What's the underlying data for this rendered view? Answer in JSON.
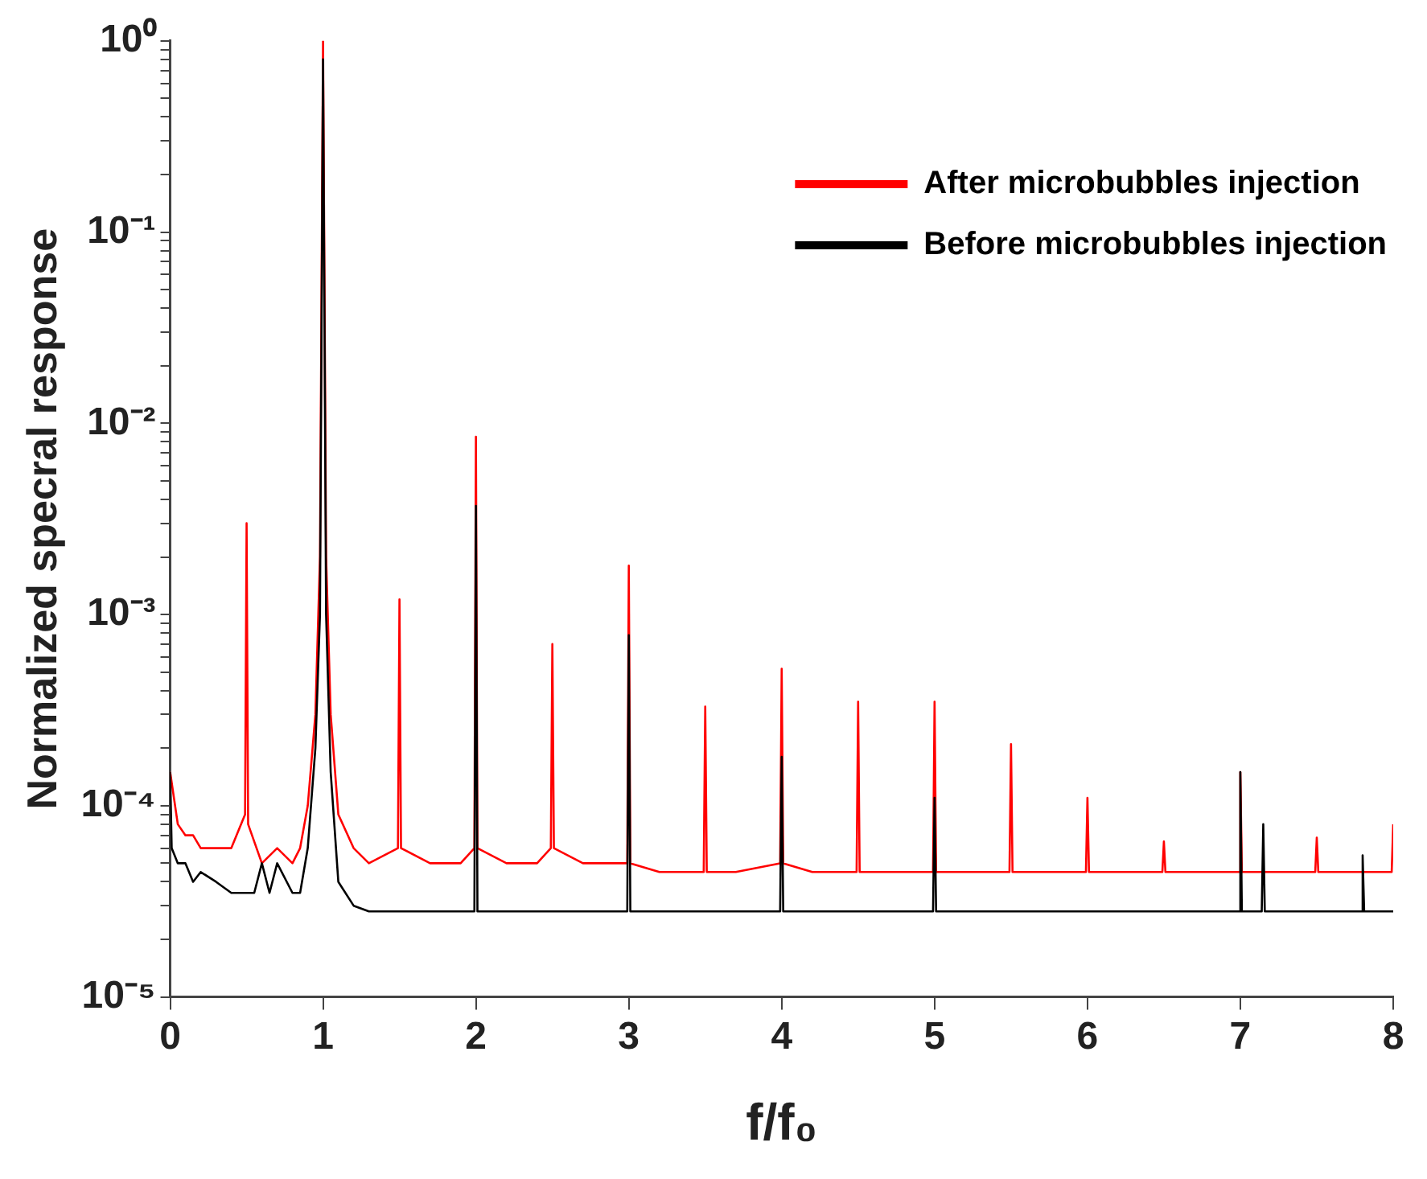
{
  "chart_data": {
    "type": "line",
    "xlabel": "f/f₀",
    "ylabel": "Normalized specral response",
    "log": "y",
    "xlim": [
      0,
      8
    ],
    "xticks": [
      0,
      1,
      2,
      3,
      4,
      5,
      6,
      7,
      8
    ],
    "ylim": [
      1e-05,
      1
    ],
    "yticks": [
      {
        "value": 1e-05,
        "label": "10⁻⁵"
      },
      {
        "value": 2e-05,
        "label": null
      },
      {
        "value": 3e-05,
        "label": null
      },
      {
        "value": 4e-05,
        "label": null
      },
      {
        "value": 5e-05,
        "label": null
      },
      {
        "value": 6e-05,
        "label": null
      },
      {
        "value": 7e-05,
        "label": null
      },
      {
        "value": 8e-05,
        "label": null
      },
      {
        "value": 9e-05,
        "label": null
      },
      {
        "value": 0.0001,
        "label": "10⁻⁴"
      },
      {
        "value": 0.0002,
        "label": null
      },
      {
        "value": 0.0003,
        "label": null
      },
      {
        "value": 0.0004,
        "label": null
      },
      {
        "value": 0.0005,
        "label": null
      },
      {
        "value": 0.0006,
        "label": null
      },
      {
        "value": 0.0007,
        "label": null
      },
      {
        "value": 0.0008,
        "label": null
      },
      {
        "value": 0.0009,
        "label": null
      },
      {
        "value": 0.001,
        "label": "10⁻³"
      },
      {
        "value": 0.002,
        "label": null
      },
      {
        "value": 0.003,
        "label": null
      },
      {
        "value": 0.004,
        "label": null
      },
      {
        "value": 0.005,
        "label": null
      },
      {
        "value": 0.006,
        "label": null
      },
      {
        "value": 0.007,
        "label": null
      },
      {
        "value": 0.008,
        "label": null
      },
      {
        "value": 0.009,
        "label": null
      },
      {
        "value": 0.01,
        "label": "10⁻²"
      },
      {
        "value": 0.02,
        "label": null
      },
      {
        "value": 0.03,
        "label": null
      },
      {
        "value": 0.04,
        "label": null
      },
      {
        "value": 0.05,
        "label": null
      },
      {
        "value": 0.06,
        "label": null
      },
      {
        "value": 0.07,
        "label": null
      },
      {
        "value": 0.08,
        "label": null
      },
      {
        "value": 0.09,
        "label": null
      },
      {
        "value": 0.1,
        "label": "10⁻¹"
      },
      {
        "value": 0.2,
        "label": null
      },
      {
        "value": 0.3,
        "label": null
      },
      {
        "value": 0.4,
        "label": null
      },
      {
        "value": 0.5,
        "label": null
      },
      {
        "value": 0.6,
        "label": null
      },
      {
        "value": 0.7,
        "label": null
      },
      {
        "value": 0.8,
        "label": null
      },
      {
        "value": 0.9,
        "label": null
      },
      {
        "value": 1,
        "label": "10⁰"
      }
    ],
    "grid": false,
    "legend": "top right",
    "marker": "none",
    "line_style": "solid",
    "series": [
      {
        "name": "After microbubbles injection",
        "color": "#ff0000",
        "x": [
          0,
          0.05,
          0.1,
          0.15,
          0.2,
          0.3,
          0.4,
          0.49,
          0.5,
          0.51,
          0.6,
          0.7,
          0.8,
          0.85,
          0.9,
          0.95,
          0.98,
          1,
          1.02,
          1.05,
          1.1,
          1.2,
          1.3,
          1.49,
          1.5,
          1.51,
          1.7,
          1.9,
          1.99,
          2,
          2.01,
          2.2,
          2.4,
          2.49,
          2.5,
          2.51,
          2.7,
          2.9,
          2.99,
          3,
          3.01,
          3.2,
          3.49,
          3.5,
          3.51,
          3.7,
          3.99,
          4,
          4.01,
          4.2,
          4.49,
          4.5,
          4.51,
          4.7,
          4.99,
          5,
          5.01,
          5.2,
          5.49,
          5.5,
          5.51,
          5.7,
          5.99,
          6,
          6.01,
          6.2,
          6.49,
          6.5,
          6.51,
          6.8,
          6.99,
          7,
          7.01,
          7.2,
          7.49,
          7.5,
          7.51,
          7.7,
          7.9,
          7.99,
          8
        ],
        "values": [
          0.00015,
          8e-05,
          7e-05,
          7e-05,
          6e-05,
          6e-05,
          6e-05,
          9e-05,
          0.003,
          8e-05,
          5e-05,
          6e-05,
          5e-05,
          6e-05,
          0.0001,
          0.0003,
          0.002,
          1,
          0.002,
          0.0003,
          9e-05,
          6e-05,
          5e-05,
          6e-05,
          0.0012,
          6e-05,
          5e-05,
          5e-05,
          6e-05,
          0.0085,
          6e-05,
          5e-05,
          5e-05,
          6e-05,
          0.0007,
          6e-05,
          5e-05,
          5e-05,
          5e-05,
          0.0018,
          5e-05,
          4.5e-05,
          4.5e-05,
          0.00033,
          4.5e-05,
          4.5e-05,
          5e-05,
          0.00052,
          5e-05,
          4.5e-05,
          4.5e-05,
          0.00035,
          4.5e-05,
          4.5e-05,
          4.5e-05,
          0.00035,
          4.5e-05,
          4.5e-05,
          4.5e-05,
          0.00021,
          4.5e-05,
          4.5e-05,
          4.5e-05,
          0.00011,
          4.5e-05,
          4.5e-05,
          4.5e-05,
          6.5e-05,
          4.5e-05,
          4.5e-05,
          4.5e-05,
          0.00015,
          4.5e-05,
          4.5e-05,
          4.5e-05,
          6.8e-05,
          4.5e-05,
          4.5e-05,
          4.5e-05,
          4.5e-05,
          8e-05
        ]
      },
      {
        "name": "Before microbubbles injection",
        "color": "#000000",
        "x": [
          0,
          0.01,
          0.05,
          0.1,
          0.15,
          0.2,
          0.3,
          0.4,
          0.5,
          0.55,
          0.6,
          0.65,
          0.7,
          0.8,
          0.85,
          0.9,
          0.95,
          0.98,
          1,
          1.02,
          1.05,
          1.1,
          1.2,
          1.3,
          1.5,
          1.7,
          1.99,
          2,
          2.01,
          2.3,
          2.6,
          2.99,
          3,
          3.01,
          3.3,
          3.6,
          3.99,
          4,
          4.01,
          4.3,
          4.6,
          4.99,
          5,
          5.01,
          5.3,
          5.6,
          6,
          6.3,
          6.6,
          6.99,
          7,
          7.01,
          7.14,
          7.15,
          7.16,
          7.4,
          7.79,
          7.8,
          7.81,
          8
        ],
        "values": [
          0.00015,
          6e-05,
          5e-05,
          5e-05,
          4e-05,
          4.5e-05,
          4e-05,
          3.5e-05,
          3.5e-05,
          3.5e-05,
          5e-05,
          3.5e-05,
          5e-05,
          3.5e-05,
          3.5e-05,
          6e-05,
          0.0002,
          0.001,
          0.8,
          0.001,
          0.00015,
          4e-05,
          3e-05,
          2.8e-05,
          2.8e-05,
          2.8e-05,
          2.8e-05,
          0.0037,
          2.8e-05,
          2.8e-05,
          2.8e-05,
          2.8e-05,
          0.00078,
          2.8e-05,
          2.8e-05,
          2.8e-05,
          2.8e-05,
          0.00018,
          2.8e-05,
          2.8e-05,
          2.8e-05,
          2.8e-05,
          0.00011,
          2.8e-05,
          2.8e-05,
          2.8e-05,
          2.8e-05,
          2.8e-05,
          2.8e-05,
          2.8e-05,
          0.00015,
          2.8e-05,
          2.8e-05,
          8e-05,
          2.8e-05,
          2.8e-05,
          2.8e-05,
          5.5e-05,
          2.8e-05,
          2.8e-05
        ]
      }
    ]
  }
}
